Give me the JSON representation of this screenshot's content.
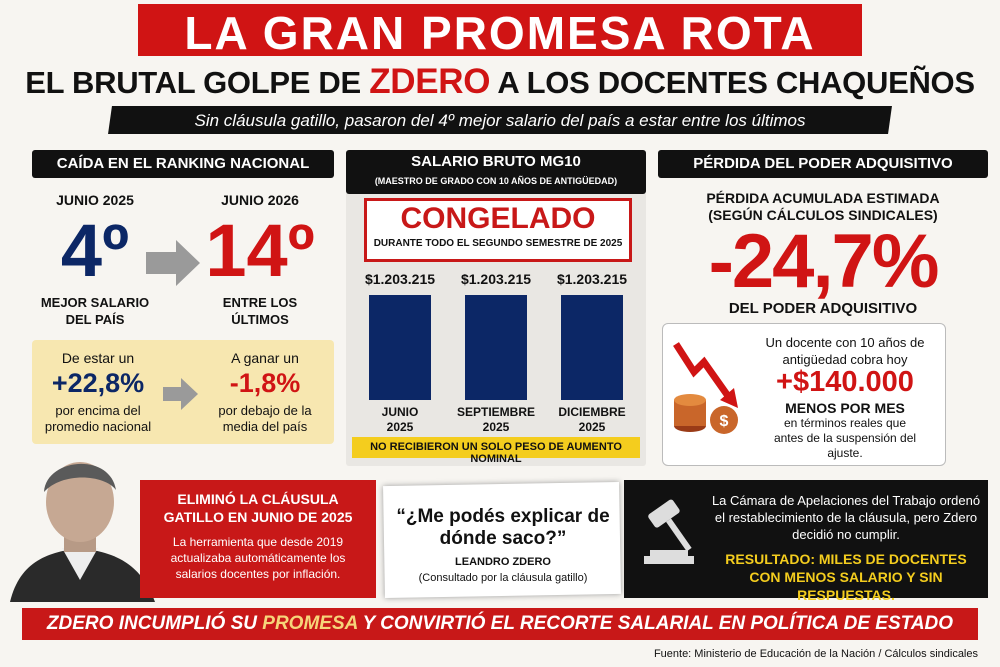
{
  "header": {
    "title": "LA GRAN PROMESA ROTA",
    "headline": [
      "EL BRUTAL GOLPE DE ",
      "ZDERO",
      " A LOS DOCENTES CHAQUEÑOS"
    ],
    "subtitle": "Sin cláusula gatillo, pasaron del 4º mejor salario del país a estar entre los últimos"
  },
  "ranking": {
    "heading": "CAÍDA EN EL RANKING NACIONAL",
    "before": {
      "date": "JUNIO 2025",
      "rank": "4º",
      "caption": "MEJOR SALARIO DEL PAÍS"
    },
    "after": {
      "date": "JUNIO 2026",
      "rank": "14º",
      "caption": "ENTRE LOS ÚLTIMOS"
    },
    "gap_before": {
      "lead": "De estar un",
      "value": "+22,8%",
      "caption": "por encima del promedio nacional"
    },
    "gap_after": {
      "lead": "A ganar un",
      "value": "-1,8%",
      "caption": "por debajo de la media del país"
    }
  },
  "salary": {
    "heading": "SALARIO BRUTO MG10",
    "subheading": "(MAESTRO DE GRADO CON 10 AÑOS DE ANTIGÜEDAD)",
    "stamp": "CONGELADO",
    "stamp_note": "DURANTE TODO EL SEGUNDO SEMESTRE DE 2025",
    "chart": {
      "type": "bar",
      "categories": [
        "JUNIO 2025",
        "SEPTIEMBRE 2025",
        "DICIEMBRE 2025"
      ],
      "values": [
        1203215,
        1203215,
        1203215
      ],
      "value_labels": [
        "$1.203.215",
        "$1.203.215",
        "$1.203.215"
      ],
      "color": "#0c2766"
    },
    "note": "NO RECIBIERON UN SOLO PESO DE AUMENTO NOMINAL"
  },
  "purchasing": {
    "heading": "PÉRDIDA DEL PODER ADQUISITIVO",
    "lead": "PÉRDIDA ACUMULADA ESTIMADA",
    "lead_note": "(SEGÚN CÁLCULOS SINDICALES)",
    "value": "-24,7%",
    "caption": "DEL PODER ADQUISITIVO",
    "box": {
      "intro": "Un docente con 10 años de antigüedad cobra hoy",
      "amount": "+$140.000",
      "amount_caption": "MENOS POR MES",
      "detail": "en términos reales que antes de la suspensión del ajuste."
    }
  },
  "clause": {
    "title": "ELIMINÓ LA CLÁUSULA GATILLO EN JUNIO DE 2025",
    "text": "La herramienta que desde 2019 actualizaba automáticamente los salarios docentes por inflación."
  },
  "quote": {
    "text": "“¿Me podés explicar de dónde saco?”",
    "author": "LEANDRO ZDERO",
    "context": "(Consultado por la cláusula gatillo)"
  },
  "court": {
    "text": "La Cámara de Apelaciones del Trabajo ordenó el restablecimiento de la cláusula, pero Zdero decidió no cumplir.",
    "result": "RESULTADO: MILES DE DOCENTES CON MENOS SALARIO Y SIN RESPUESTAS."
  },
  "footer": {
    "banner": [
      "ZDERO INCUMPLIÓ SU ",
      "PROMESA",
      " Y CONVIRTIÓ EL RECORTE SALARIAL EN POLÍTICA DE ESTADO"
    ],
    "source": "Fuente: Ministerio de Educación de la Nación / Cálculos sindicales"
  }
}
